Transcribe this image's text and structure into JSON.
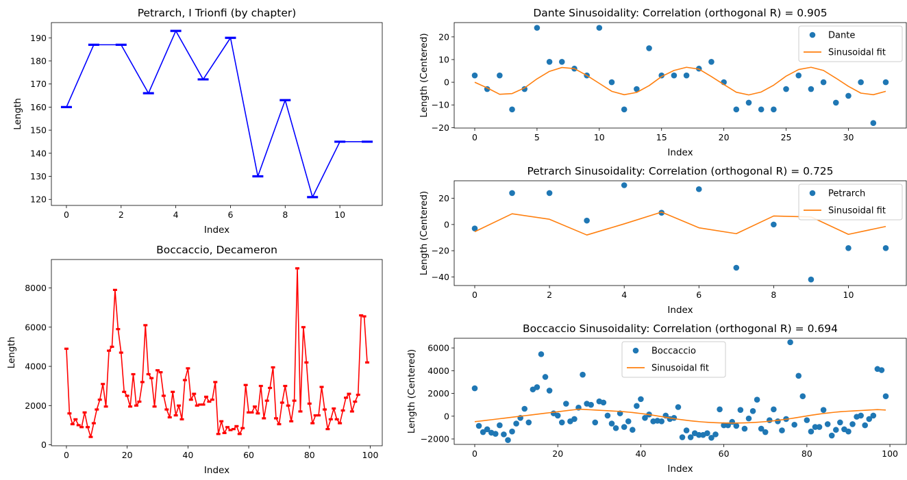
{
  "chart_data": [
    {
      "id": "petrarch_chapters",
      "type": "line",
      "title": "Petrarch, I Trionfi (by chapter)",
      "xlabel": "Index",
      "ylabel": "Length",
      "xlim": [
        -0.55,
        11.55
      ],
      "ylim": [
        117.4,
        196.6
      ],
      "xticks": [
        0,
        2,
        4,
        6,
        8,
        10
      ],
      "yticks": [
        120,
        130,
        140,
        150,
        160,
        170,
        180,
        190
      ],
      "color": "#0000ff",
      "markers": "capped",
      "series": [
        {
          "x": [
            0,
            1,
            2,
            3,
            4,
            5,
            6,
            7,
            8,
            9,
            10,
            11
          ],
          "values": [
            160,
            187,
            187,
            166,
            193,
            172,
            190,
            130,
            163,
            121,
            145,
            145
          ]
        }
      ]
    },
    {
      "id": "boccaccio_decameron",
      "type": "line",
      "title": "Boccaccio, Decameron",
      "xlabel": "Index",
      "ylabel": "Length",
      "xlim": [
        -4.95,
        103.95
      ],
      "ylim": [
        -50,
        9450
      ],
      "xticks": [
        0,
        20,
        40,
        60,
        80,
        100
      ],
      "yticks": [
        0,
        2000,
        4000,
        6000,
        8000
      ],
      "color": "#ff0000",
      "markers": "capped",
      "series": [
        {
          "x_start": 0,
          "values": [
            4900,
            1600,
            1050,
            1300,
            1000,
            900,
            1650,
            900,
            400,
            1100,
            1800,
            2300,
            3100,
            1950,
            4800,
            5000,
            7900,
            5900,
            4700,
            2700,
            2500,
            1950,
            3600,
            2000,
            2200,
            3200,
            6100,
            3600,
            3400,
            1950,
            3800,
            3700,
            2500,
            1800,
            1400,
            2700,
            1500,
            2000,
            1300,
            3300,
            3900,
            2300,
            2600,
            2000,
            2050,
            2050,
            2450,
            2200,
            2300,
            3200,
            550,
            1200,
            600,
            900,
            750,
            800,
            950,
            550,
            850,
            3050,
            1650,
            1650,
            1950,
            1600,
            3000,
            1350,
            2250,
            2900,
            3950,
            1350,
            1050,
            2150,
            3000,
            2000,
            1200,
            2250,
            9000,
            1700,
            6000,
            4200,
            2100,
            1100,
            1500,
            1500,
            2950,
            1800,
            800,
            1300,
            1850,
            1300,
            1100,
            1750,
            2400,
            2600,
            1700,
            2200,
            2550,
            6600,
            6550,
            4200
          ]
        }
      ]
    },
    {
      "id": "dante_sinusoidality",
      "type": "scatter",
      "title": "Dante Sinusoidality: Correlation (orthogonal R) = 0.905",
      "xlabel": "Index",
      "ylabel": "Length (Centered)",
      "xlim": [
        -1.65,
        34.65
      ],
      "ylim": [
        -20.2,
        26.3
      ],
      "xticks": [
        0,
        5,
        10,
        15,
        20,
        25,
        30
      ],
      "yticks": [
        -20,
        -10,
        0,
        10,
        20
      ],
      "legend_position": "upper right",
      "series": [
        {
          "name": "Dante",
          "kind": "points",
          "color": "#1f77b4",
          "x_start": 0,
          "values": [
            3,
            -3,
            3,
            -12,
            -3,
            24,
            9,
            9,
            6,
            3,
            24,
            0,
            -12,
            -3,
            15,
            3,
            3,
            3,
            6,
            9,
            0,
            -12,
            -9,
            -12,
            -12,
            -3,
            3,
            -3,
            0,
            -9,
            -6,
            0,
            -18,
            0
          ]
        },
        {
          "name": "Sinusoidal fit",
          "kind": "line",
          "color": "#ff7f0e",
          "x_start": 0,
          "values": [
            0,
            -2.5,
            -5.3,
            -5,
            -2.5,
            1.5,
            4.8,
            6.5,
            6,
            3,
            -0.5,
            -4,
            -5.5,
            -4.5,
            -1.5,
            2.5,
            5.2,
            6.6,
            5.8,
            2.5,
            -1,
            -4.4,
            -5.6,
            -4.3,
            -1.3,
            2.7,
            5.6,
            6.6,
            5.2,
            1.8,
            -1.8,
            -4.8,
            -5.5,
            -4
          ]
        }
      ]
    },
    {
      "id": "petrarch_sinusoidality",
      "type": "scatter",
      "title": "Petrarch Sinusoidality: Correlation (orthogonal R) = 0.725",
      "xlabel": "Index",
      "ylabel": "Length (Centered)",
      "xlim": [
        -0.55,
        11.55
      ],
      "ylim": [
        -46.6,
        33.4
      ],
      "xticks": [
        0,
        2,
        4,
        6,
        8,
        10
      ],
      "yticks": [
        -40,
        -20,
        0,
        20
      ],
      "legend_position": "upper right",
      "series": [
        {
          "name": "Petrarch",
          "kind": "points",
          "color": "#1f77b4",
          "x_start": 0,
          "values": [
            -3,
            24,
            24,
            3,
            30,
            9,
            27,
            -33,
            0,
            -42,
            -18,
            -18
          ]
        },
        {
          "name": "Sinusoidal fit",
          "kind": "line",
          "color": "#ff7f0e",
          "x_start": 0,
          "values": [
            -5.5,
            8.2,
            4,
            -8,
            0.5,
            9.5,
            -2.5,
            -7,
            6.5,
            5.8,
            -7.5,
            -1.5
          ]
        }
      ]
    },
    {
      "id": "boccaccio_sinusoidality",
      "type": "scatter",
      "title": "Boccaccio Sinusoidality: Correlation (orthogonal R) = 0.694",
      "xlabel": "Index",
      "ylabel": "Length (Centered)",
      "xlim": [
        -4.95,
        103.95
      ],
      "ylim": [
        -2480,
        6850
      ],
      "xticks": [
        0,
        20,
        40,
        60,
        80,
        100
      ],
      "yticks": [
        -2000,
        0,
        2000,
        4000,
        6000
      ],
      "legend_position": "upper center",
      "series": [
        {
          "name": "Boccaccio",
          "kind": "points",
          "color": "#1f77b4",
          "x_start": 0,
          "values": [
            2450,
            -850,
            -1400,
            -1150,
            -1450,
            -1550,
            -800,
            -1600,
            -2100,
            -1350,
            -650,
            -150,
            650,
            -550,
            2350,
            2550,
            5450,
            3450,
            2250,
            250,
            50,
            -550,
            1100,
            -450,
            -250,
            750,
            3650,
            1100,
            1000,
            -550,
            1300,
            1200,
            50,
            -650,
            -1050,
            250,
            -950,
            -450,
            -1200,
            900,
            1500,
            -150,
            150,
            -450,
            -400,
            -450,
            50,
            -250,
            -150,
            800,
            -1850,
            -1250,
            -1850,
            -1500,
            -1650,
            -1650,
            -1500,
            -1900,
            -1600,
            600,
            -800,
            -800,
            -500,
            -850,
            550,
            -1100,
            -200,
            450,
            1450,
            -1100,
            -1400,
            -350,
            600,
            -450,
            -1250,
            -250,
            6500,
            -750,
            3550,
            1750,
            -350,
            -1350,
            -950,
            -950,
            550,
            -700,
            -1700,
            -1200,
            -550,
            -1150,
            -1350,
            -700,
            -50,
            50,
            -800,
            -250,
            50,
            4150,
            4050,
            1750
          ]
        },
        {
          "name": "Sinusoidal fit",
          "kind": "line",
          "color": "#ff7f0e",
          "x_start": 0,
          "values": [
            -480,
            -440,
            -400,
            -356,
            -312,
            -268,
            -223,
            -180,
            -136,
            -92,
            -48,
            -4,
            40,
            84,
            128,
            172,
            216,
            260,
            304,
            348,
            392,
            436,
            480,
            524,
            568,
            612,
            600,
            580,
            560,
            540,
            520,
            500,
            480,
            460,
            440,
            416,
            388,
            356,
            320,
            280,
            236,
            188,
            136,
            80,
            20,
            -40,
            -100,
            -158,
            -214,
            -268,
            -318,
            -364,
            -406,
            -444,
            -478,
            -508,
            -534,
            -556,
            -574,
            -588,
            -598,
            -604,
            -606,
            -604,
            -598,
            -588,
            -574,
            -556,
            -534,
            -508,
            -478,
            -444,
            -406,
            -364,
            -318,
            -268,
            -214,
            -158,
            -100,
            -40,
            20,
            80,
            136,
            188,
            236,
            280,
            320,
            356,
            388,
            416,
            440,
            460,
            480,
            500,
            520,
            540,
            560,
            580,
            560,
            540
          ]
        }
      ]
    }
  ]
}
